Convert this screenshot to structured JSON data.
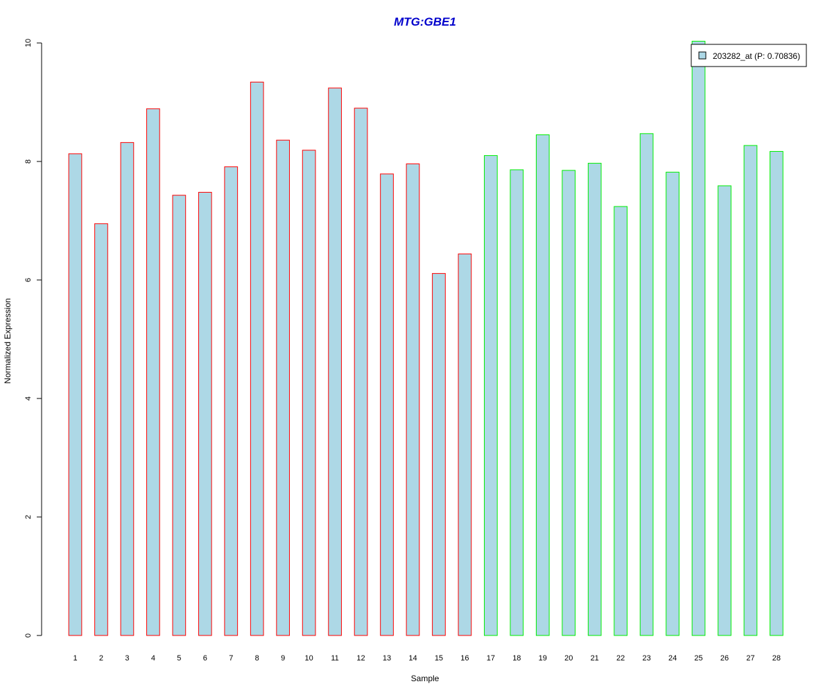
{
  "chart_data": {
    "type": "bar",
    "title": "MTG:GBE1",
    "xlabel": "Sample",
    "ylabel": "Normalized Expression",
    "ylim": [
      0,
      10
    ],
    "yticks": [
      0,
      2,
      4,
      6,
      8,
      10
    ],
    "grid": false,
    "legend": {
      "placement": "top-right",
      "label": "203282_at (P: 0.70836)"
    },
    "categories": [
      "1",
      "2",
      "3",
      "4",
      "5",
      "6",
      "7",
      "8",
      "9",
      "10",
      "11",
      "12",
      "13",
      "14",
      "15",
      "16",
      "17",
      "18",
      "19",
      "20",
      "21",
      "22",
      "23",
      "24",
      "25",
      "26",
      "27",
      "28"
    ],
    "values": [
      8.13,
      6.95,
      8.32,
      8.89,
      7.43,
      7.48,
      7.91,
      9.34,
      8.36,
      8.19,
      9.24,
      8.9,
      7.79,
      7.96,
      6.11,
      6.44,
      8.1,
      7.86,
      8.45,
      7.85,
      7.97,
      7.24,
      8.47,
      7.82,
      10.03,
      7.59,
      8.27,
      8.17
    ],
    "groups": [
      "a",
      "a",
      "a",
      "a",
      "a",
      "a",
      "a",
      "a",
      "a",
      "a",
      "a",
      "a",
      "a",
      "a",
      "a",
      "a",
      "b",
      "b",
      "b",
      "b",
      "b",
      "b",
      "b",
      "b",
      "b",
      "b",
      "b",
      "b"
    ],
    "colors": {
      "title": "#0000cc",
      "fill": "#add8e6",
      "border_group_a": "#ff0000",
      "border_group_b": "#00ee00",
      "axis": "#000000"
    }
  }
}
